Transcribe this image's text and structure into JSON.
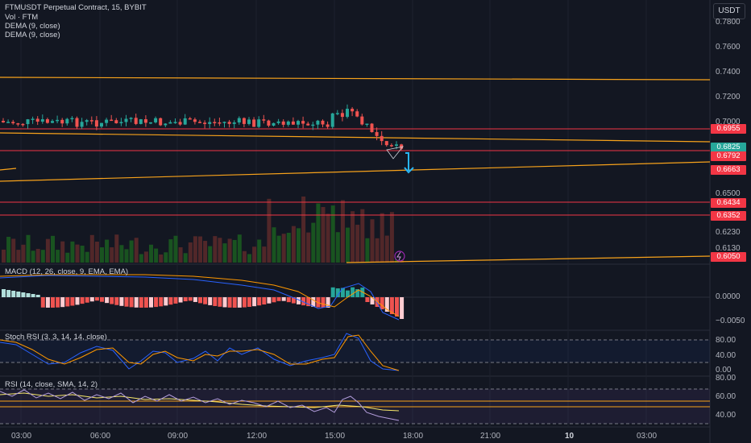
{
  "header": {
    "symbol": "FTMUSDT Perpetual Contract, 15, BYBIT",
    "vol": "Vol · FTM",
    "dema1": "DEMA (9, close)",
    "dema2": "DEMA (9, close)"
  },
  "currency": "USDT",
  "price_axis": {
    "ticks": [
      "0.7800",
      "0.7600",
      "0.7400",
      "0.7200",
      "0.7000",
      "0.6500",
      "0.6230",
      "0.6130"
    ]
  },
  "price_tags": [
    {
      "value": "0.6955",
      "color": "#f23645"
    },
    {
      "value": "0.6825",
      "color": "#26a69a"
    },
    {
      "value": "0.6792",
      "color": "#f23645"
    },
    {
      "value": "0.6663",
      "color": "#f23645"
    },
    {
      "value": "0.6434",
      "color": "#f23645"
    },
    {
      "value": "0.6352",
      "color": "#f23645"
    },
    {
      "value": "0.6050",
      "color": "#f23645"
    }
  ],
  "panes": {
    "macd": {
      "title": "MACD (12, 26, close, 9, EMA, EMA)",
      "ticks": [
        "0.0000",
        "−0.0050"
      ]
    },
    "stoch": {
      "title": "Stoch RSI (3, 3, 14, 14, close)",
      "ticks": [
        "80.00",
        "40.00",
        "0.00"
      ]
    },
    "rsi": {
      "title": "RSI (14, close, SMA, 14, 2)",
      "ticks": [
        "80.00",
        "60.00",
        "40.00"
      ]
    }
  },
  "time_axis": [
    "03:00",
    "06:00",
    "09:00",
    "12:00",
    "15:00",
    "18:00",
    "21:00",
    "10",
    "03:00"
  ],
  "colors": {
    "up": "#26a69a",
    "down": "#ef5350",
    "level": "#f23645",
    "trend": "#f7a21b"
  },
  "chart_data": {
    "type": "candlestick",
    "symbol": "FTMUSDT",
    "interval": "15",
    "recent_closes": [
      0.7,
      0.696,
      0.692,
      0.688,
      0.684,
      0.681,
      0.6825
    ]
  }
}
